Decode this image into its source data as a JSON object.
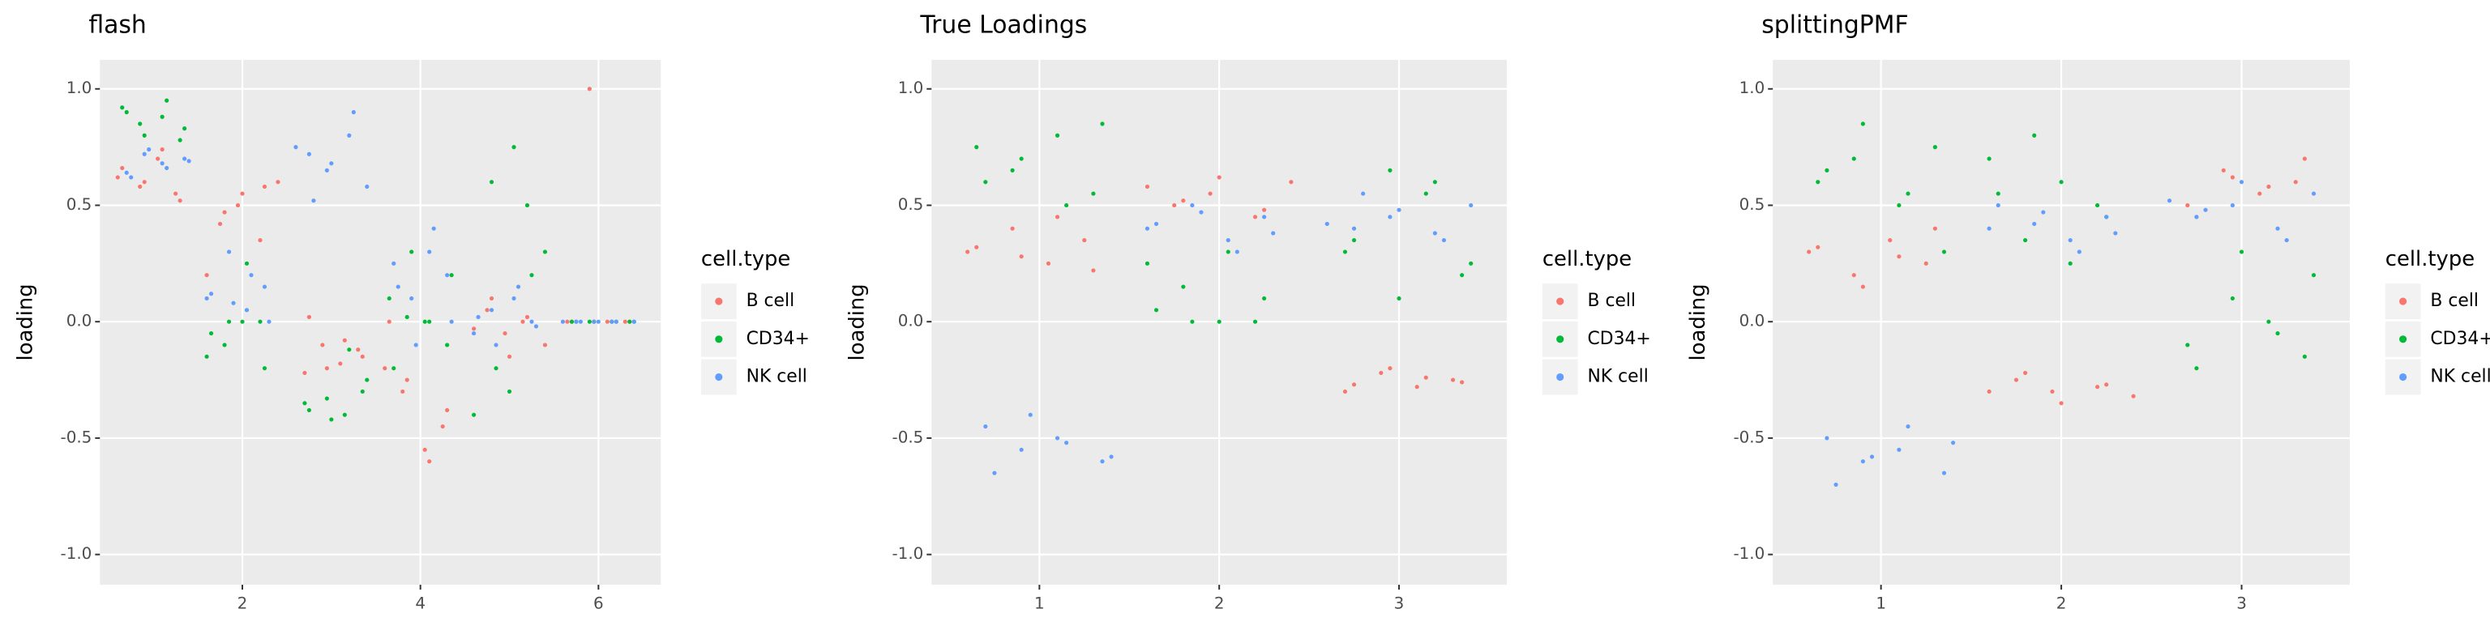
{
  "chart_data": [
    {
      "type": "scatter",
      "title": "flash",
      "y_label": "loading",
      "legend_title": "cell.type",
      "legend": "right",
      "grid": true,
      "x": [
        1,
        2,
        3,
        4,
        5,
        6
      ],
      "xlim": [
        0.4,
        6.7
      ],
      "xticks": [
        2,
        4,
        6
      ],
      "ylim": [
        -1.13,
        1.125
      ],
      "yticks": [
        {
          "value": -1.0,
          "label": "-1.0"
        },
        -0.5,
        {
          "value": 0.0,
          "label": "0.0"
        },
        0.5,
        {
          "value": 1.0,
          "label": "1.0"
        }
      ],
      "series": [
        {
          "name": "B cell",
          "color": "#F8766D",
          "values": [
            [
              0.62,
              0.55,
              0.7,
              0.58,
              0.66,
              0.52,
              0.74,
              0.6
            ],
            [
              0.5,
              0.42,
              0.6,
              0.35,
              0.55,
              0.47,
              0.2,
              0.58
            ],
            [
              -0.12,
              -0.18,
              -0.1,
              -0.22,
              -0.15,
              -0.08,
              -0.2,
              0.02
            ],
            [
              -0.3,
              -0.2,
              -0.45,
              -0.55,
              -0.25,
              0,
              -0.38,
              -0.6
            ],
            [
              0,
              -0.05,
              0.05,
              -0.1,
              0.02,
              -0.15,
              0.1,
              -0.03
            ],
            [
              0,
              0,
              0,
              1.0,
              0,
              0,
              0,
              0
            ]
          ]
        },
        {
          "name": "CD34+",
          "color": "#00BA38",
          "values": [
            [
              0.85,
              0.92,
              0.78,
              0.88,
              0.8,
              0.9,
              0.83,
              0.95
            ],
            [
              0,
              0,
              -0.1,
              -0.15,
              -0.2,
              0.25,
              0,
              -0.05
            ],
            [
              -0.35,
              -0.3,
              -0.4,
              -0.33,
              -0.38,
              -0.25,
              -0.12,
              -0.42
            ],
            [
              0,
              0.02,
              0.1,
              -0.1,
              0,
              0.3,
              -0.2,
              0.2
            ],
            [
              0.3,
              0.5,
              -0.3,
              0.6,
              -0.4,
              0.2,
              0.75,
              -0.2
            ],
            [
              0,
              0,
              0,
              0,
              0,
              0,
              0,
              0
            ]
          ]
        },
        {
          "name": "NK cell",
          "color": "#619CFF",
          "values": [
            [
              0.68,
              0.72,
              0.64,
              0.7,
              0.66,
              0.74,
              0.62,
              0.69
            ],
            [
              0.1,
              0.15,
              0.05,
              0.3,
              0.12,
              0,
              0.2,
              0.08
            ],
            [
              0.65,
              0.72,
              0.58,
              0.8,
              0.68,
              0.52,
              0.75,
              0.9
            ],
            [
              0.2,
              0.3,
              0.1,
              0.25,
              0,
              0.4,
              -0.1,
              0.15
            ],
            [
              0.05,
              -0.05,
              0,
              0.1,
              -0.1,
              0.02,
              -0.02,
              0.15
            ],
            [
              0,
              0,
              0,
              0,
              0,
              0,
              0,
              0
            ]
          ]
        }
      ]
    },
    {
      "type": "scatter",
      "title": "True Loadings",
      "y_label": "loading",
      "legend_title": "cell.type",
      "legend": "right",
      "grid": true,
      "x": [
        1,
        2,
        3
      ],
      "xlim": [
        0.4,
        3.6
      ],
      "xticks": [
        1,
        2,
        3
      ],
      "ylim": [
        -1.13,
        1.125
      ],
      "yticks": [
        {
          "value": -1.0,
          "label": "-1.0"
        },
        -0.5,
        {
          "value": 0.0,
          "label": "0.0"
        },
        0.5,
        {
          "value": 1.0,
          "label": "1.0"
        }
      ],
      "series": [
        {
          "name": "B cell",
          "color": "#F8766D",
          "values": [
            [
              0.3,
              0.35,
              0.25,
              0.4,
              0.32,
              0.22,
              0.45,
              0.28
            ],
            [
              0.55,
              0.5,
              0.6,
              0.45,
              0.62,
              0.52,
              0.58,
              0.48
            ],
            [
              -0.25,
              -0.28,
              -0.22,
              -0.3,
              -0.26,
              -0.24,
              -0.2,
              -0.27
            ]
          ]
        },
        {
          "name": "CD34+",
          "color": "#00BA38",
          "values": [
            [
              0.65,
              0.75,
              0.55,
              0.8,
              0.7,
              0.6,
              0.85,
              0.5
            ],
            [
              0,
              0,
              0.15,
              0.25,
              0.1,
              0.3,
              0,
              0.05
            ],
            [
              0.3,
              0.2,
              0.55,
              0.65,
              0.35,
              0.25,
              0.6,
              0.1
            ]
          ]
        },
        {
          "name": "NK cell",
          "color": "#619CFF",
          "values": [
            [
              -0.5,
              -0.55,
              -0.45,
              -0.6,
              -0.52,
              -0.4,
              -0.65,
              -0.58
            ],
            [
              0.4,
              0.45,
              0.35,
              0.5,
              0.42,
              0.38,
              0.3,
              0.47
            ],
            [
              0.45,
              0.4,
              0.5,
              0.38,
              0.48,
              0.55,
              0.42,
              0.35
            ]
          ]
        }
      ]
    },
    {
      "type": "scatter",
      "title": "splittingPMF",
      "y_label": "loading",
      "legend_title": "cell.type",
      "legend": "right",
      "grid": true,
      "x": [
        1,
        2,
        3
      ],
      "xlim": [
        0.4,
        3.6
      ],
      "xticks": [
        1,
        2,
        3
      ],
      "ylim": [
        -1.13,
        1.125
      ],
      "yticks": [
        {
          "value": -1.0,
          "label": "-1.0"
        },
        -0.5,
        {
          "value": 0.0,
          "label": "0.0"
        },
        0.5,
        {
          "value": 1.0,
          "label": "1.0"
        }
      ],
      "series": [
        {
          "name": "B cell",
          "color": "#F8766D",
          "values": [
            [
              0.3,
              0.25,
              0.35,
              0.2,
              0.32,
              0.4,
              0.28,
              0.15
            ],
            [
              -0.3,
              -0.25,
              -0.32,
              -0.28,
              -0.35,
              -0.22,
              -0.3,
              -0.27
            ],
            [
              0.6,
              0.55,
              0.65,
              0.5,
              0.7,
              0.58,
              0.62,
              0.45
            ]
          ]
        },
        {
          "name": "CD34+",
          "color": "#00BA38",
          "values": [
            [
              0.7,
              0.6,
              0.75,
              0.5,
              0.85,
              0.65,
              0.3,
              0.55
            ],
            [
              0.5,
              0.6,
              0.35,
              0.7,
              0.45,
              0.25,
              0.8,
              0.55
            ],
            [
              -0.1,
              -0.15,
              0,
              0.1,
              -0.2,
              0.2,
              -0.05,
              0.3
            ]
          ]
        },
        {
          "name": "NK cell",
          "color": "#619CFF",
          "values": [
            [
              -0.55,
              -0.6,
              -0.5,
              -0.65,
              -0.45,
              -0.58,
              -0.7,
              -0.52
            ],
            [
              0.4,
              0.45,
              0.35,
              0.42,
              0.5,
              0.38,
              0.3,
              0.47
            ],
            [
              0.5,
              0.45,
              0.55,
              0.4,
              0.6,
              0.48,
              0.52,
              0.35
            ]
          ]
        }
      ]
    }
  ]
}
